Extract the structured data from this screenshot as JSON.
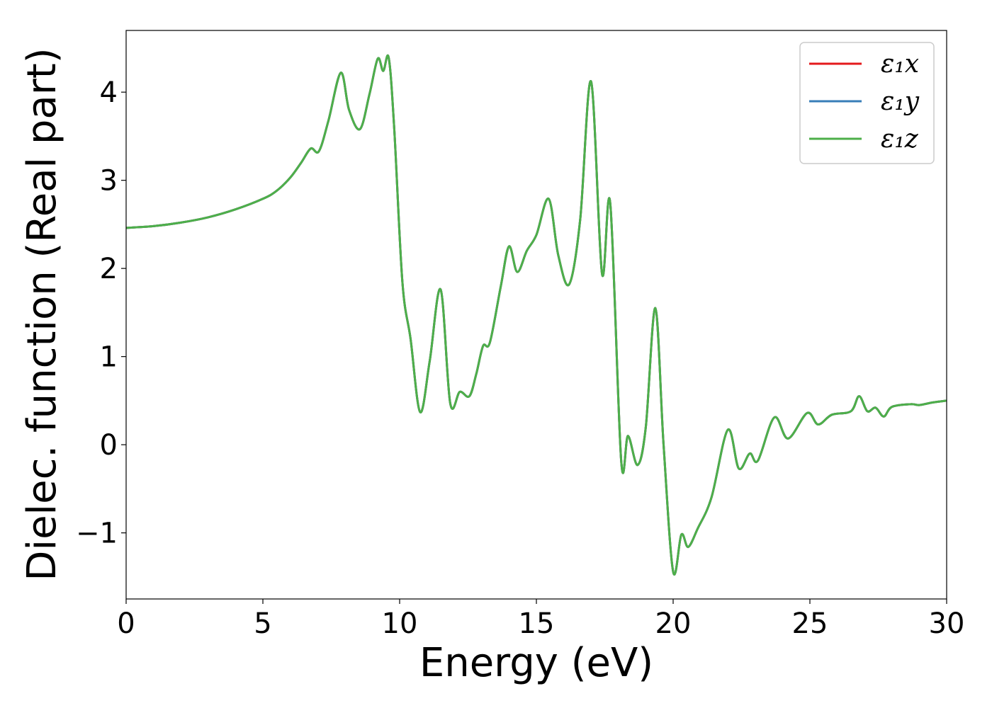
{
  "chart_data": {
    "type": "line",
    "title": "",
    "xlabel": "Energy (eV)",
    "ylabel": "Dielec. function (Real part)",
    "xlim": [
      0,
      30
    ],
    "ylim": [
      -1.75,
      4.7
    ],
    "xticks": [
      0,
      5,
      10,
      15,
      20,
      25,
      30
    ],
    "xtick_labels": [
      "0",
      "5",
      "10",
      "15",
      "20",
      "25",
      "30"
    ],
    "yticks": [
      -1,
      0,
      1,
      2,
      3,
      4
    ],
    "ytick_labels": [
      "−1",
      "0",
      "1",
      "2",
      "3",
      "4"
    ],
    "grid": false,
    "legend_position": "top-right",
    "series": [
      {
        "name": "ε₁x",
        "color": "#e41a1c",
        "x": [
          0,
          1,
          2,
          3,
          4,
          5,
          5.5,
          6,
          6.4,
          6.75,
          7.05,
          7.4,
          7.85,
          8.15,
          8.55,
          8.9,
          9.2,
          9.4,
          9.6,
          9.8,
          10.1,
          10.4,
          10.75,
          11.1,
          11.5,
          11.85,
          12.2,
          12.55,
          12.8,
          13.05,
          13.3,
          13.7,
          14.0,
          14.3,
          14.65,
          15.0,
          15.45,
          15.8,
          16.2,
          16.6,
          17.0,
          17.4,
          17.7,
          18.1,
          18.35,
          18.7,
          19.0,
          19.35,
          19.65,
          20.0,
          20.3,
          20.55,
          20.9,
          21.4,
          22.0,
          22.4,
          22.8,
          23.1,
          23.7,
          24.2,
          24.9,
          25.3,
          25.8,
          26.5,
          26.8,
          27.1,
          27.4,
          27.7,
          28.0,
          28.7,
          29.0,
          29.5,
          30.0
        ],
        "y": [
          2.46,
          2.48,
          2.52,
          2.58,
          2.67,
          2.79,
          2.88,
          3.03,
          3.2,
          3.36,
          3.33,
          3.68,
          4.22,
          3.8,
          3.58,
          3.98,
          4.38,
          4.24,
          4.39,
          3.6,
          1.85,
          1.2,
          0.37,
          0.95,
          1.76,
          0.47,
          0.6,
          0.55,
          0.8,
          1.12,
          1.16,
          1.8,
          2.25,
          1.96,
          2.2,
          2.38,
          2.79,
          2.15,
          1.82,
          2.55,
          4.12,
          1.94,
          2.74,
          -0.18,
          0.1,
          -0.23,
          0.2,
          1.55,
          0.0,
          -1.44,
          -1.02,
          -1.16,
          -0.95,
          -0.6,
          0.17,
          -0.27,
          -0.1,
          -0.18,
          0.31,
          0.07,
          0.36,
          0.23,
          0.34,
          0.38,
          0.55,
          0.38,
          0.42,
          0.32,
          0.43,
          0.46,
          0.45,
          0.48,
          0.5
        ]
      },
      {
        "name": "ε₁y",
        "color": "#377eb8",
        "x": [
          0,
          1,
          2,
          3,
          4,
          5,
          5.5,
          6,
          6.4,
          6.75,
          7.05,
          7.4,
          7.85,
          8.15,
          8.55,
          8.9,
          9.2,
          9.4,
          9.6,
          9.8,
          10.1,
          10.4,
          10.75,
          11.1,
          11.5,
          11.85,
          12.2,
          12.55,
          12.8,
          13.05,
          13.3,
          13.7,
          14.0,
          14.3,
          14.65,
          15.0,
          15.45,
          15.8,
          16.2,
          16.6,
          17.0,
          17.4,
          17.7,
          18.1,
          18.35,
          18.7,
          19.0,
          19.35,
          19.65,
          20.0,
          20.3,
          20.55,
          20.9,
          21.4,
          22.0,
          22.4,
          22.8,
          23.1,
          23.7,
          24.2,
          24.9,
          25.3,
          25.8,
          26.5,
          26.8,
          27.1,
          27.4,
          27.7,
          28.0,
          28.7,
          29.0,
          29.5,
          30.0
        ],
        "y": [
          2.46,
          2.48,
          2.52,
          2.58,
          2.67,
          2.79,
          2.88,
          3.03,
          3.2,
          3.36,
          3.33,
          3.68,
          4.22,
          3.8,
          3.58,
          3.98,
          4.38,
          4.24,
          4.39,
          3.6,
          1.85,
          1.2,
          0.37,
          0.95,
          1.76,
          0.47,
          0.6,
          0.55,
          0.8,
          1.12,
          1.16,
          1.8,
          2.25,
          1.96,
          2.2,
          2.38,
          2.79,
          2.15,
          1.82,
          2.55,
          4.12,
          1.94,
          2.74,
          -0.18,
          0.1,
          -0.23,
          0.2,
          1.55,
          0.0,
          -1.44,
          -1.02,
          -1.16,
          -0.95,
          -0.6,
          0.17,
          -0.27,
          -0.1,
          -0.18,
          0.31,
          0.07,
          0.36,
          0.23,
          0.34,
          0.38,
          0.55,
          0.38,
          0.42,
          0.32,
          0.43,
          0.46,
          0.45,
          0.48,
          0.5
        ]
      },
      {
        "name": "ε₁z",
        "color": "#4daf4a",
        "x": [
          0,
          1,
          2,
          3,
          4,
          5,
          5.5,
          6,
          6.4,
          6.75,
          7.05,
          7.4,
          7.85,
          8.15,
          8.55,
          8.9,
          9.2,
          9.4,
          9.6,
          9.8,
          10.1,
          10.4,
          10.75,
          11.1,
          11.5,
          11.85,
          12.2,
          12.55,
          12.8,
          13.05,
          13.3,
          13.7,
          14.0,
          14.3,
          14.65,
          15.0,
          15.45,
          15.8,
          16.2,
          16.6,
          17.0,
          17.4,
          17.7,
          18.1,
          18.35,
          18.7,
          19.0,
          19.35,
          19.65,
          20.0,
          20.3,
          20.55,
          20.9,
          21.4,
          22.0,
          22.4,
          22.8,
          23.1,
          23.7,
          24.2,
          24.9,
          25.3,
          25.8,
          26.5,
          26.8,
          27.1,
          27.4,
          27.7,
          28.0,
          28.7,
          29.0,
          29.5,
          30.0
        ],
        "y": [
          2.46,
          2.48,
          2.52,
          2.58,
          2.67,
          2.79,
          2.88,
          3.03,
          3.2,
          3.36,
          3.33,
          3.68,
          4.22,
          3.8,
          3.58,
          3.98,
          4.38,
          4.24,
          4.39,
          3.6,
          1.85,
          1.2,
          0.37,
          0.95,
          1.76,
          0.47,
          0.6,
          0.55,
          0.8,
          1.12,
          1.16,
          1.8,
          2.25,
          1.96,
          2.2,
          2.38,
          2.79,
          2.15,
          1.82,
          2.55,
          4.12,
          1.94,
          2.74,
          -0.18,
          0.1,
          -0.23,
          0.2,
          1.55,
          0.0,
          -1.44,
          -1.02,
          -1.16,
          -0.95,
          -0.6,
          0.17,
          -0.27,
          -0.1,
          -0.18,
          0.31,
          0.07,
          0.36,
          0.23,
          0.34,
          0.38,
          0.55,
          0.38,
          0.42,
          0.32,
          0.43,
          0.46,
          0.45,
          0.48,
          0.5
        ]
      }
    ]
  }
}
